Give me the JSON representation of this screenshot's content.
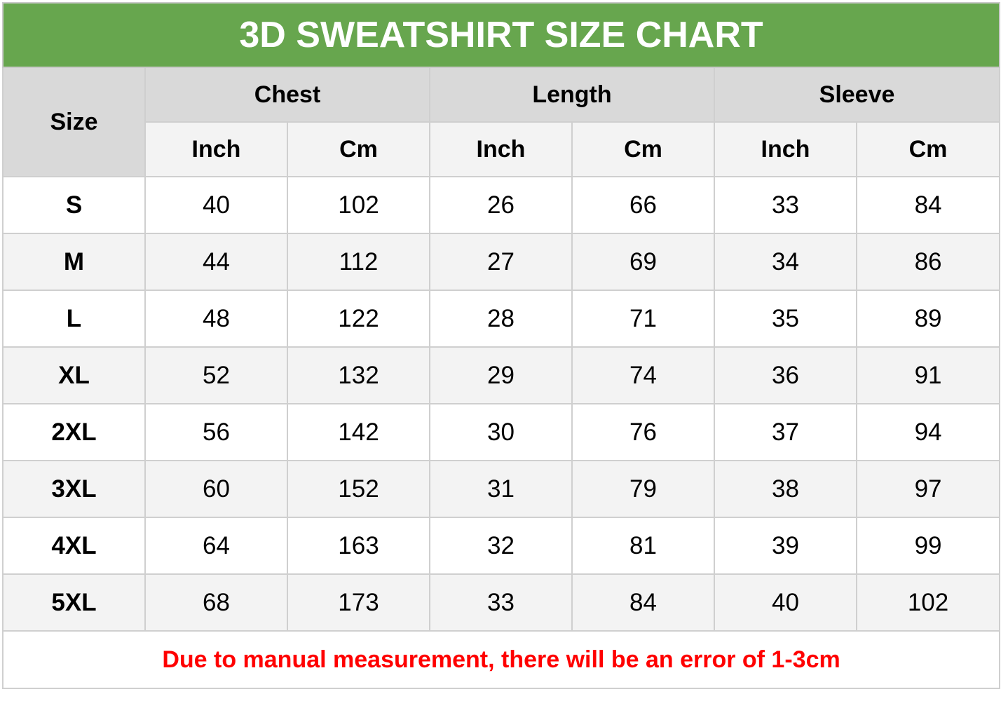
{
  "title": "3D SWEATSHIRT SIZE CHART",
  "header": {
    "size": "Size",
    "groups": [
      "Chest",
      "Length",
      "Sleeve"
    ],
    "units": [
      "Inch",
      "Cm",
      "Inch",
      "Cm",
      "Inch",
      "Cm"
    ]
  },
  "rows": [
    {
      "size": "S",
      "values": [
        "40",
        "102",
        "26",
        "66",
        "33",
        "84"
      ]
    },
    {
      "size": "M",
      "values": [
        "44",
        "112",
        "27",
        "69",
        "34",
        "86"
      ]
    },
    {
      "size": "L",
      "values": [
        "48",
        "122",
        "28",
        "71",
        "35",
        "89"
      ]
    },
    {
      "size": "XL",
      "values": [
        "52",
        "132",
        "29",
        "74",
        "36",
        "91"
      ]
    },
    {
      "size": "2XL",
      "values": [
        "56",
        "142",
        "30",
        "76",
        "37",
        "94"
      ]
    },
    {
      "size": "3XL",
      "values": [
        "60",
        "152",
        "31",
        "79",
        "38",
        "97"
      ]
    },
    {
      "size": "4XL",
      "values": [
        "64",
        "163",
        "32",
        "81",
        "39",
        "99"
      ]
    },
    {
      "size": "5XL",
      "values": [
        "68",
        "173",
        "33",
        "84",
        "40",
        "102"
      ]
    }
  ],
  "note": "Due to manual measurement, there will be an error of 1-3cm",
  "colors": {
    "title_bg": "#67a64e",
    "header_bg": "#d9d9d9",
    "note_text": "#ff0000"
  }
}
